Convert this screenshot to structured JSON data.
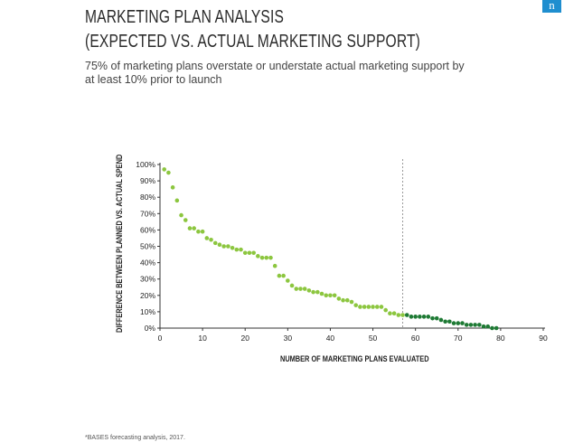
{
  "header": {
    "title_line1": "MARKETING PLAN ANALYSIS",
    "title_line2": "(EXPECTED VS. ACTUAL MARKETING SUPPORT)",
    "subtitle": "75% of marketing plans overstate or understate actual marketing support by at least 10% prior to launch",
    "logo_text": "n"
  },
  "footnote": "*BASES forecasting analysis, 2017.",
  "colors": {
    "light_green": "#8cc63f",
    "dark_green": "#1e7a34",
    "axis": "#333333",
    "reference_line": "#999999"
  },
  "chart_data": {
    "type": "scatter",
    "title": "MARKETING PLAN ANALYSIS (EXPECTED VS. ACTUAL MARKETING SUPPORT)",
    "xlabel": "NUMBER OF MARKETING PLANS EVALUATED",
    "ylabel": "DIFFERENCE BETWEEN PLANNED VS. ACTUAL SPEND",
    "xlim": [
      0,
      90
    ],
    "ylim": [
      0,
      100
    ],
    "x_ticks": [
      "0",
      "10",
      "20",
      "30",
      "40",
      "50",
      "60",
      "70",
      "80",
      "90"
    ],
    "y_ticks": [
      "0%",
      "10%",
      "20%",
      "30%",
      "40%",
      "50%",
      "60%",
      "70%",
      "80%",
      "90%",
      "100%"
    ],
    "grid": false,
    "reference_line_x": 57,
    "series": [
      {
        "color": "#8cc63f",
        "x": [
          1,
          2,
          3,
          4,
          5,
          6,
          7,
          8,
          9,
          10,
          11,
          12,
          13,
          14,
          15,
          16,
          17,
          18,
          19,
          20,
          21,
          22,
          23,
          24,
          25,
          26,
          27,
          28,
          29,
          30,
          31,
          32,
          33,
          34,
          35,
          36,
          37,
          38,
          39,
          40,
          41,
          42,
          43,
          44,
          45,
          46,
          47,
          48,
          49,
          50,
          51,
          52,
          53,
          54,
          55,
          56,
          57
        ],
        "y": [
          97,
          95,
          86,
          78,
          69,
          66,
          61,
          61,
          59,
          59,
          55,
          54,
          52,
          51,
          50,
          50,
          49,
          48,
          48,
          46,
          46,
          46,
          44,
          43,
          43,
          43,
          38,
          32,
          32,
          29,
          26,
          24,
          24,
          24,
          23,
          22,
          22,
          21,
          20,
          20,
          20,
          18,
          17,
          17,
          16,
          14,
          13,
          13,
          13,
          13,
          13,
          13,
          11,
          9,
          9,
          8,
          8
        ]
      },
      {
        "color": "#1e7a34",
        "x": [
          58,
          59,
          60,
          61,
          62,
          63,
          64,
          65,
          66,
          67,
          68,
          69,
          70,
          71,
          72,
          73,
          74,
          75,
          76,
          77,
          78,
          79
        ],
        "y": [
          8,
          7,
          7,
          7,
          7,
          7,
          6,
          6,
          5,
          4,
          4,
          3,
          3,
          3,
          2,
          2,
          2,
          2,
          1,
          1,
          0,
          0
        ]
      }
    ]
  }
}
